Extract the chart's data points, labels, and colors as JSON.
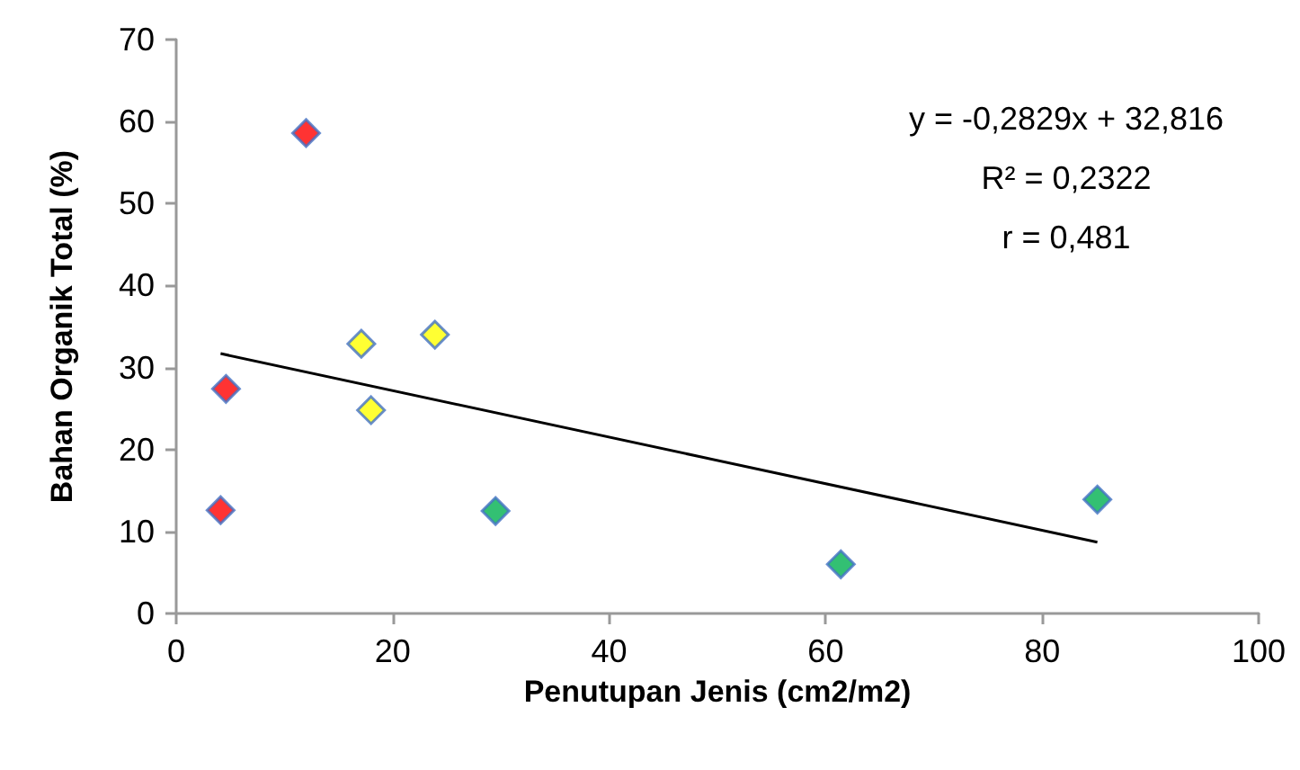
{
  "chart_data": {
    "type": "scatter",
    "xlabel": "Penutupan Jenis (cm2/m2)",
    "ylabel": "Bahan Organik Total (%)",
    "marker": "diamond",
    "grid": false,
    "xlim": [
      0,
      100
    ],
    "xticks": [
      0,
      20,
      40,
      60,
      80,
      100
    ],
    "ylim": [
      0,
      70
    ],
    "yticks": [
      0,
      10,
      20,
      30,
      40,
      50,
      60,
      70
    ],
    "annotations": [
      "y = -0,2829x + 32,816",
      "R² = 0,2322",
      "r = 0,481"
    ],
    "series": [
      {
        "color": "#ff0000",
        "x": [
          4.1,
          4.6,
          12.0
        ],
        "values": [
          12.6,
          27.4,
          58.6
        ]
      },
      {
        "color": "#ffff00",
        "x": [
          17.1,
          18.0,
          23.9
        ],
        "values": [
          32.9,
          24.8,
          34.0
        ]
      },
      {
        "color": "#00b050",
        "x": [
          29.5,
          61.4,
          85.1
        ],
        "values": [
          12.5,
          6.0,
          13.9
        ]
      },
      {
        "type": "line",
        "color": "#000000",
        "marker": "none",
        "x": [
          4.1,
          85.1
        ],
        "values": [
          31.7,
          8.7
        ]
      }
    ]
  }
}
